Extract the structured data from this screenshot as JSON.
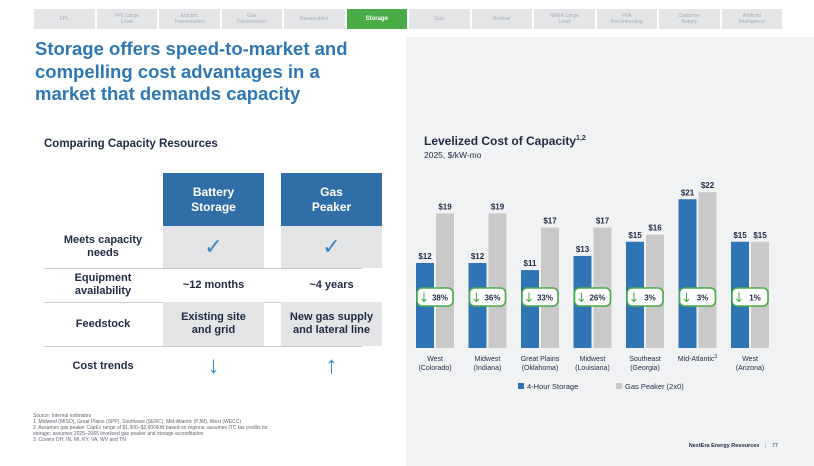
{
  "nav": {
    "tabs": [
      {
        "label": "FPL",
        "active": false
      },
      {
        "label": "FPL Large\nLoad",
        "active": false
      },
      {
        "label": "Electric\nTransmission",
        "active": false
      },
      {
        "label": "Gas\nTransmission",
        "active": false
      },
      {
        "label": "Renewables",
        "active": false
      },
      {
        "label": "Storage",
        "active": true
      },
      {
        "label": "Gas",
        "active": false
      },
      {
        "label": "Nuclear",
        "active": false
      },
      {
        "label": "NEER Large\nLoad",
        "active": false
      },
      {
        "label": "PPA\nRecontracting",
        "active": false
      },
      {
        "label": "Customer\nSupply",
        "active": false
      },
      {
        "label": "Artificial\nIntelligence",
        "active": false
      }
    ]
  },
  "title": "Storage offers speed-to-market and\ncompelling cost advantages in a\nmarket that demands capacity",
  "comparison": {
    "heading": "Comparing Capacity Resources",
    "columns": [
      "Battery\nStorage",
      "Gas\nPeaker"
    ],
    "rows": [
      {
        "label": "Meets capacity\nneeds",
        "battery": "✓",
        "gas": "✓"
      },
      {
        "label": "Equipment\navailability",
        "battery": "~12 months",
        "gas": "~4 years"
      },
      {
        "label": "Feedstock",
        "battery": "Existing site\nand grid",
        "gas": "New gas supply\nand lateral line"
      },
      {
        "label": "Cost trends",
        "battery": "↓",
        "gas": "↑"
      }
    ]
  },
  "chart_data": {
    "type": "bar",
    "title": "Levelized Cost of Capacity",
    "title_footnote": "1,2",
    "subtitle": "2025, $/kW-mo",
    "categories": [
      "West\n(Colorado)",
      "Midwest\n(Indiana)",
      "Great Plains\n(Oklahoma)",
      "Midwest\n(Louisiana)",
      "Southeast\n(Georgia)",
      "Mid-Atlantic",
      "West\n(Arizona)"
    ],
    "category_footnotes": [
      "",
      "",
      "",
      "",
      "",
      "3",
      ""
    ],
    "series": [
      {
        "name": "4-Hour Storage",
        "color": "#2f74b5",
        "values": [
          12,
          12,
          11,
          13,
          15,
          21,
          15
        ],
        "labels": [
          "$12",
          "$12",
          "$11",
          "$13",
          "$15",
          "$21",
          "$15"
        ]
      },
      {
        "name": "Gas Peaker (2x0)",
        "color": "#c9c9c9",
        "values": [
          19,
          19,
          17,
          17,
          16,
          22,
          15
        ],
        "labels": [
          "$19",
          "$19",
          "$17",
          "$17",
          "$16",
          "$22",
          "$15"
        ]
      }
    ],
    "savings": [
      "38%",
      "36%",
      "33%",
      "26%",
      "3%",
      "3%",
      "1%"
    ],
    "savings_color": "#4aab47",
    "ylim": [
      0,
      24
    ],
    "xlabel": "",
    "ylabel": ""
  },
  "footnotes": {
    "source": "Source: Internal estimates",
    "notes": [
      "1.  Midwest (MISO), Great Plains (SPP), Southeast (SERC), Mid-Atlantic (PJM), West (WECC)",
      "2.  Assumes gas peaker CapEx range of $1,900–$2,600/kW based on regions; assumes ITC tax credits for\n     storage; assumes 2025–2065 levelized gas peaker and storage accreditation",
      "3.  Covers OH, IN, MI, KY, VA, WV and TN"
    ]
  },
  "footer": {
    "company": "NextEra Energy Resources",
    "separator": "|",
    "page": "77"
  }
}
